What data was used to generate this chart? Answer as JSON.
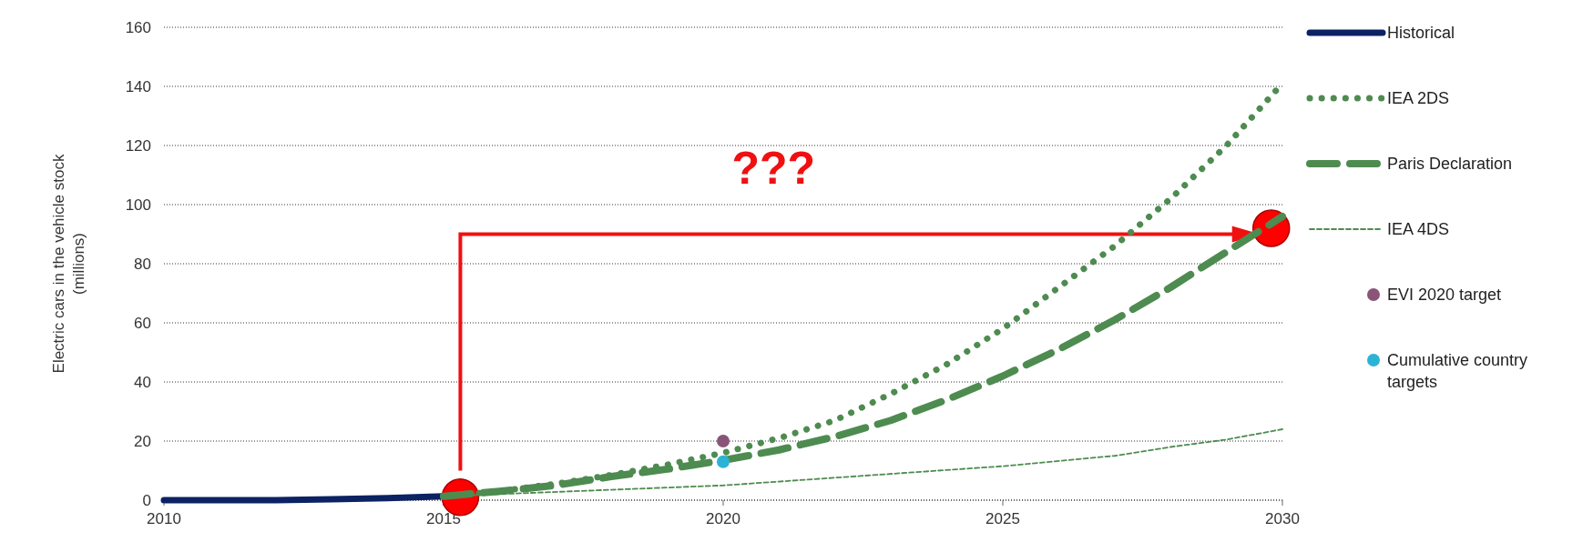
{
  "chart_data": {
    "type": "line",
    "ylabel": "Electric cars in the vehicle stock (millions)",
    "xlim": [
      2010,
      2030
    ],
    "xticks": [
      2010,
      2015,
      2020,
      2025,
      2030
    ],
    "ylim": [
      0,
      160
    ],
    "yticks": [
      0,
      20,
      40,
      60,
      80,
      100,
      120,
      140,
      160
    ],
    "grid": "y",
    "legend": "right",
    "annotations": [
      "???"
    ],
    "series": [
      {
        "name": "Historical",
        "color": "#0b2263",
        "line_style": "solid",
        "x": [
          2010,
          2011,
          2012,
          2013,
          2014,
          2015
        ],
        "values": [
          0,
          0,
          0,
          0.3,
          0.7,
          1.3
        ]
      },
      {
        "name": "IEA 2DS",
        "color": "#4e8b50",
        "line_style": "dotted",
        "x": [
          2015,
          2016,
          2017,
          2018,
          2019,
          2020,
          2021,
          2022,
          2023,
          2024,
          2025,
          2026,
          2027,
          2028,
          2029,
          2030
        ],
        "values": [
          1.3,
          3,
          5.5,
          8.5,
          12,
          16,
          21,
          27,
          36,
          46,
          58,
          72,
          86,
          102,
          120,
          141
        ]
      },
      {
        "name": "Paris Declaration",
        "color": "#4e8b50",
        "line_style": "dashed",
        "x": [
          2015,
          2016,
          2017,
          2018,
          2019,
          2020,
          2021,
          2022,
          2023,
          2024,
          2025,
          2026,
          2027,
          2028,
          2029,
          2030
        ],
        "values": [
          1.3,
          3,
          5,
          8,
          10.5,
          13.5,
          17,
          21.5,
          27,
          34,
          42,
          51,
          61,
          72,
          84,
          96
        ]
      },
      {
        "name": "IEA 4DS",
        "color": "#4e8b50",
        "line_style": "dashed",
        "x": [
          2015,
          2020,
          2025,
          2027,
          2028,
          2029,
          2030
        ],
        "values": [
          1.3,
          5,
          11.5,
          15,
          18,
          20.5,
          24
        ]
      },
      {
        "name": "EVI 2020 target",
        "type": "scatter",
        "color": "#8a5478",
        "x": [
          2020
        ],
        "values": [
          20
        ]
      },
      {
        "name": "Cumulative country targets",
        "type": "scatter",
        "color": "#2bb3d6",
        "x": [
          2020
        ],
        "values": [
          13
        ]
      }
    ]
  }
}
